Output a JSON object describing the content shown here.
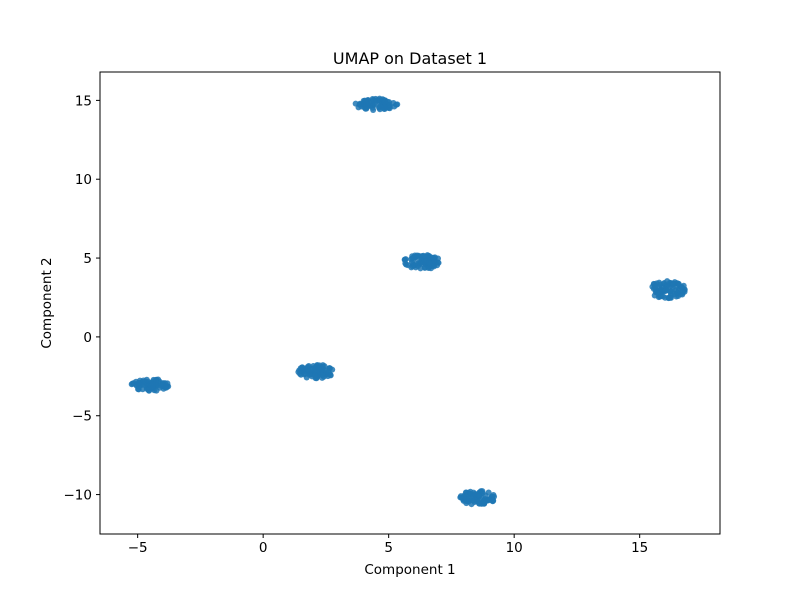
{
  "chart_data": {
    "type": "scatter",
    "title": "UMAP on Dataset 1",
    "xlabel": "Component 1",
    "ylabel": "Component 2",
    "xlim": [
      -6.5,
      18.2
    ],
    "ylim": [
      -12.5,
      16.8
    ],
    "xticks": [
      -5,
      0,
      5,
      10,
      15
    ],
    "yticks": [
      -10,
      -5,
      0,
      5,
      10,
      15
    ],
    "grid": false,
    "legend": "none",
    "marker_color": "#1f77b4",
    "clusters": [
      {
        "center": [
          4.5,
          14.75
        ],
        "spread": [
          0.85,
          0.38
        ],
        "n": 80
      },
      {
        "center": [
          6.35,
          4.75
        ],
        "spread": [
          0.75,
          0.45
        ],
        "n": 80
      },
      {
        "center": [
          16.1,
          3.0
        ],
        "spread": [
          0.75,
          0.55
        ],
        "n": 80
      },
      {
        "center": [
          2.1,
          -2.2
        ],
        "spread": [
          0.7,
          0.45
        ],
        "n": 80
      },
      {
        "center": [
          -4.5,
          -3.05
        ],
        "spread": [
          0.75,
          0.4
        ],
        "n": 80
      },
      {
        "center": [
          8.55,
          -10.2
        ],
        "spread": [
          0.7,
          0.45
        ],
        "n": 80
      }
    ]
  }
}
